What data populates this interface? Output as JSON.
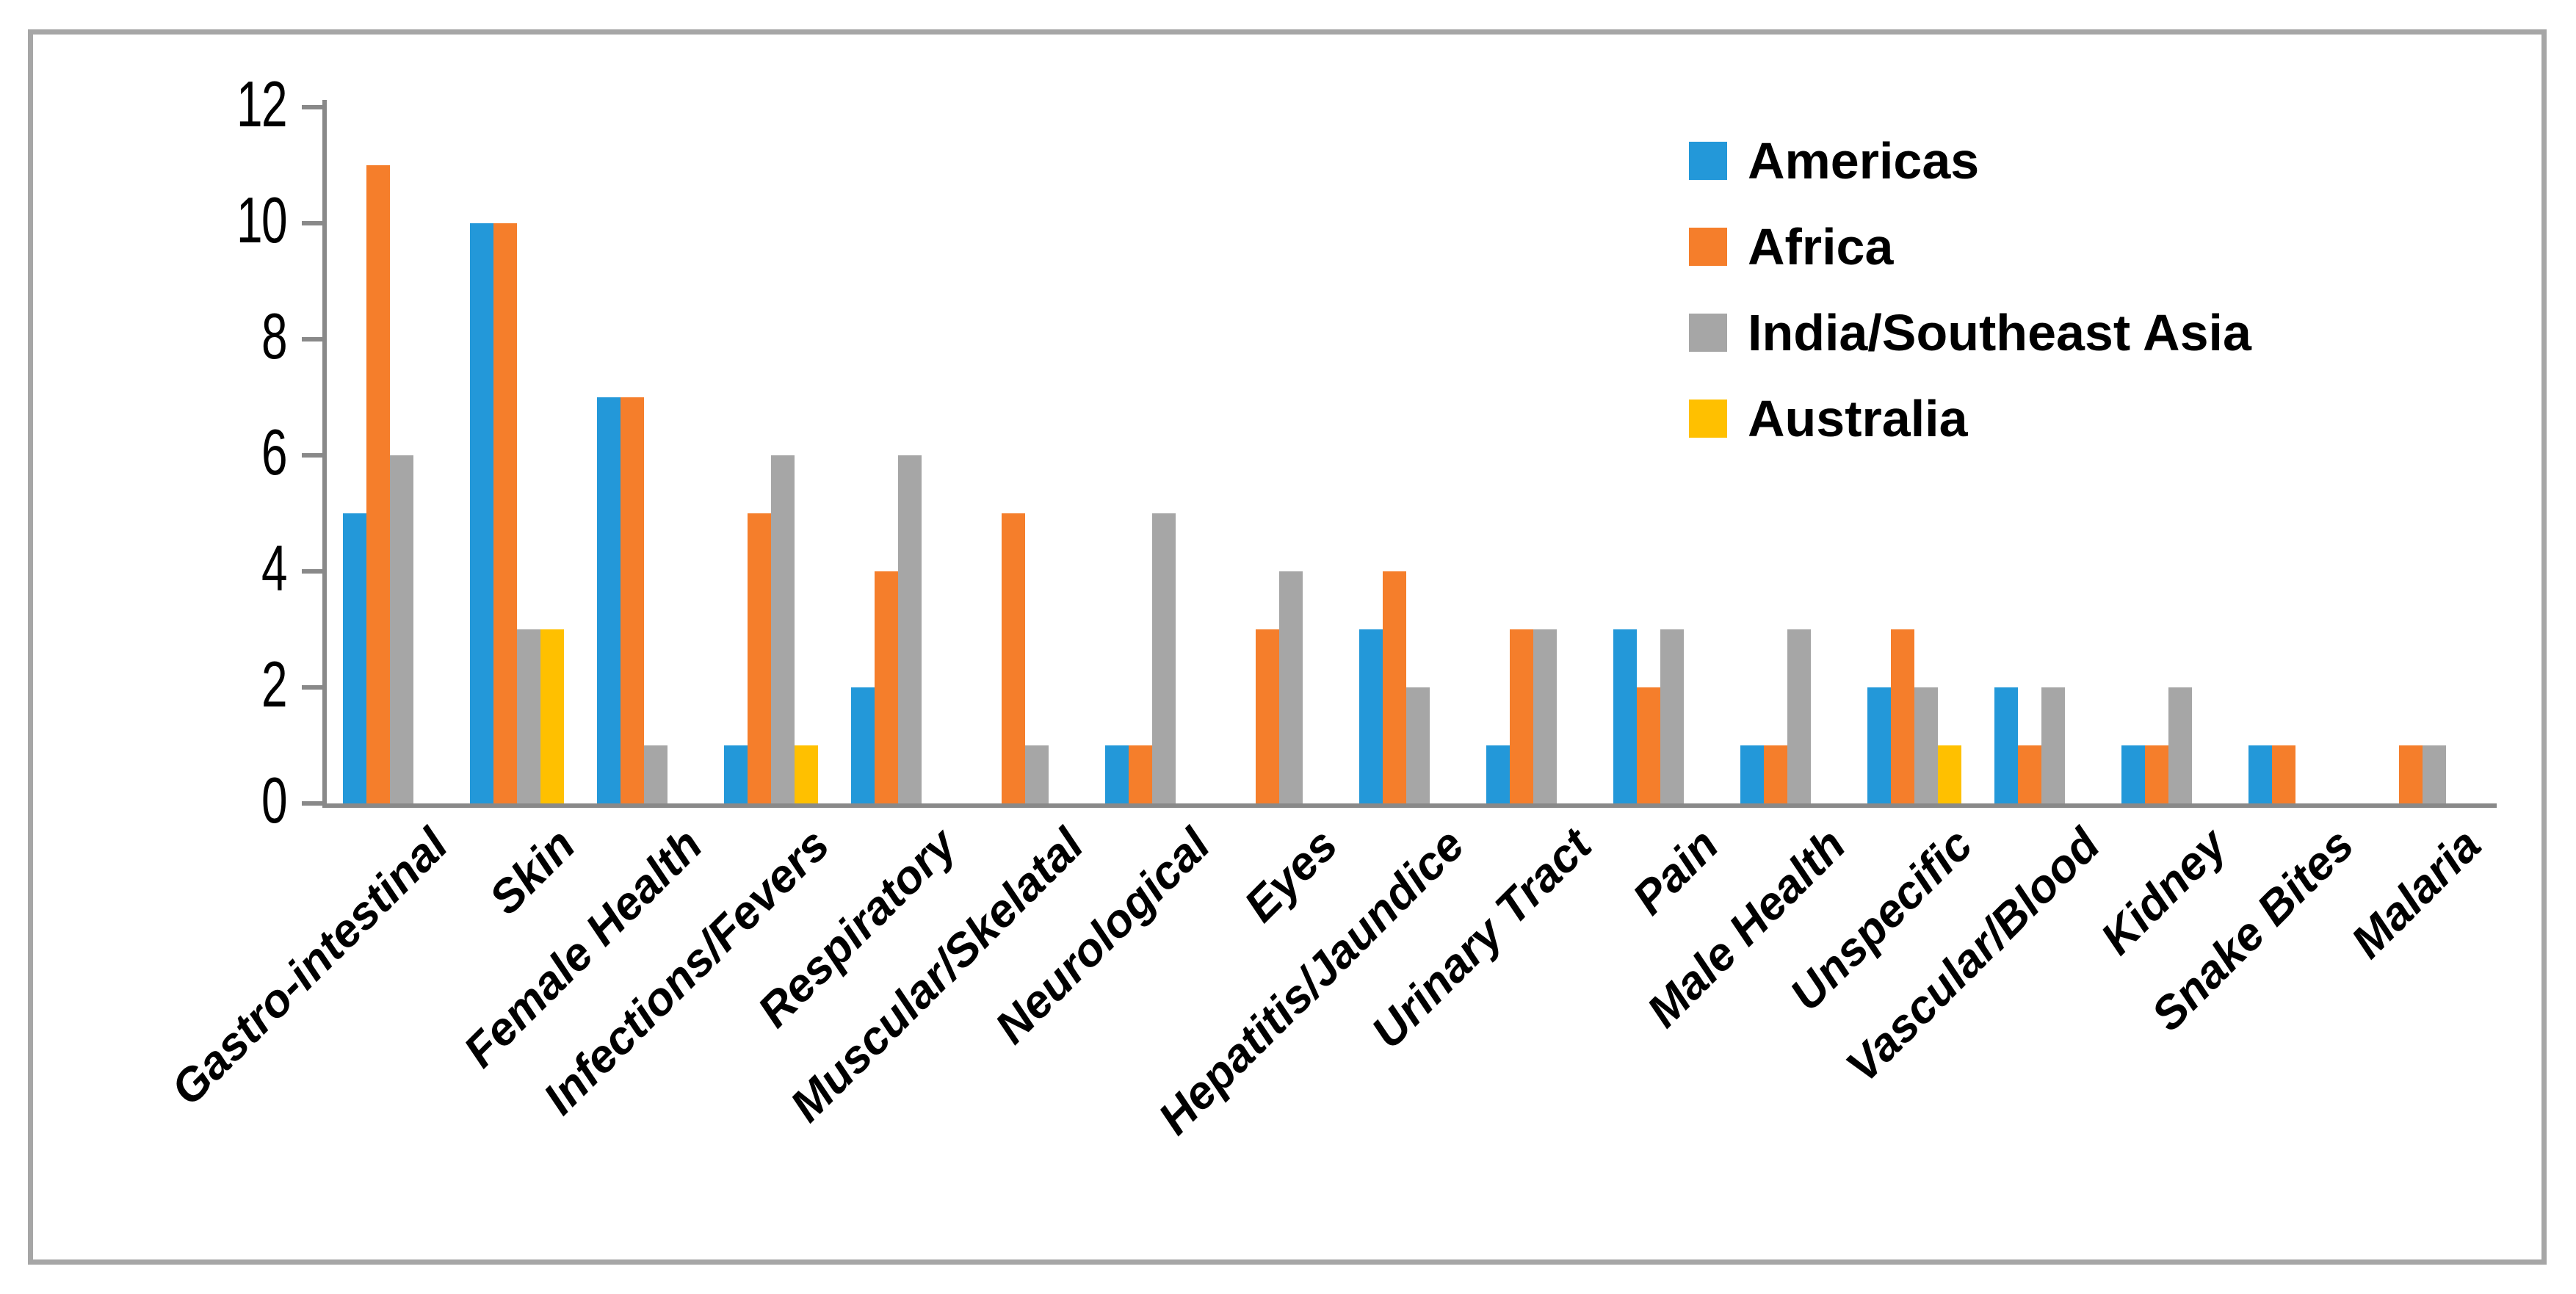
{
  "chart_data": {
    "type": "bar",
    "title": "",
    "categories": [
      "Gastro-intestinal",
      "Skin",
      "Female Health",
      "Infections/Fevers",
      "Respiratory",
      "Muscular/Skelatal",
      "Neurological",
      "Eyes",
      "Hepatitis/Jaundice",
      "Urinary Tract",
      "Pain",
      "Male Health",
      "Unspecific",
      "Vascular/Blood",
      "Kidney",
      "Snake Bites",
      "Malaria"
    ],
    "series": [
      {
        "name": "Americas",
        "color": "#2398d9",
        "values": [
          5,
          10,
          7,
          1,
          2,
          0,
          1,
          0,
          3,
          1,
          3,
          1,
          2,
          2,
          1,
          1,
          0
        ]
      },
      {
        "name": "Africa",
        "color": "#f57e2b",
        "values": [
          11,
          10,
          7,
          5,
          4,
          5,
          1,
          3,
          4,
          3,
          2,
          1,
          3,
          1,
          1,
          1,
          1
        ]
      },
      {
        "name": "India/Southeast Asia",
        "color": "#a6a6a6",
        "values": [
          6,
          3,
          1,
          6,
          6,
          1,
          5,
          4,
          2,
          3,
          3,
          3,
          2,
          2,
          2,
          0,
          1
        ]
      },
      {
        "name": "Australia",
        "color": "#ffc000",
        "values": [
          0,
          3,
          0,
          1,
          0,
          0,
          0,
          0,
          0,
          0,
          0,
          0,
          1,
          0,
          0,
          0,
          0
        ]
      }
    ],
    "y_ticks": [
      "0",
      "2",
      "4",
      "6",
      "8",
      "10",
      "12"
    ],
    "ylim": [
      0,
      12
    ],
    "xlabel": "",
    "ylabel": "",
    "grid": false,
    "legend_position": "top-right",
    "axis_color": "#898989",
    "frame_color": "#a6a6a6"
  }
}
